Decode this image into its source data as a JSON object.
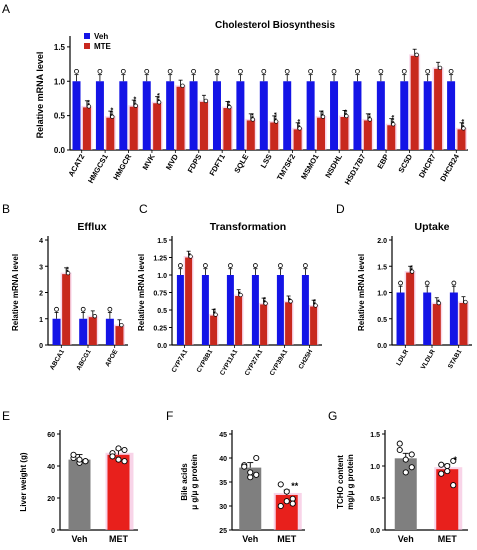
{
  "colors": {
    "veh_blue": "#1414e6",
    "mte_red": "#c8281e",
    "veh_gray": "#7f7f7f",
    "met_red": "#e8201c",
    "halo": "#f4b8d8",
    "axis": "#000000"
  },
  "chart_data": [
    {
      "panel": "A",
      "type": "bar",
      "title": "Cholesterol Biosynthesis",
      "ylabel": "Relative mRNA level",
      "ylim": [
        0,
        1.6
      ],
      "yticks": [
        0.0,
        0.5,
        1.0,
        1.5
      ],
      "ytick_labels": [
        "0.0",
        "0.5",
        "1.0",
        "1.5"
      ],
      "categories": [
        "ACAT2",
        "HMGCS1",
        "HMGCR",
        "MVK",
        "MVD",
        "FDPS",
        "FDFT1",
        "SQLE",
        "LSS",
        "TM7SF2",
        "MSMO1",
        "NSDHL",
        "HSD17B7",
        "EBP",
        "SC5D",
        "DHCR7",
        "DHCR24"
      ],
      "series": [
        {
          "name": "Veh",
          "color": "#1414e6",
          "values": [
            1.0,
            1.0,
            1.0,
            1.0,
            1.0,
            1.0,
            1.0,
            1.0,
            1.0,
            1.0,
            1.0,
            1.0,
            1.0,
            1.0,
            1.0,
            1.0,
            1.0
          ]
        },
        {
          "name": "MTE",
          "color": "#c8281e",
          "values": [
            0.62,
            0.47,
            0.63,
            0.68,
            0.92,
            0.7,
            0.61,
            0.43,
            0.4,
            0.3,
            0.47,
            0.48,
            0.43,
            0.36,
            1.37,
            1.18,
            0.3
          ]
        }
      ],
      "significance": [
        "**",
        "***",
        "***",
        "***",
        "",
        "",
        "**",
        "**",
        "***",
        "***",
        "**",
        "**",
        "**",
        "***",
        "",
        "",
        "***"
      ],
      "legend": "top-left"
    },
    {
      "panel": "B",
      "type": "bar",
      "title": "Efflux",
      "ylabel": "Relative mRNA level",
      "ylim": [
        0,
        4
      ],
      "yticks": [
        0,
        1,
        2,
        3,
        4
      ],
      "ytick_labels": [
        "0",
        "1",
        "2",
        "3",
        "4"
      ],
      "categories": [
        "ABCA1",
        "ABCG1",
        "APOE"
      ],
      "series": [
        {
          "color": "#1414e6",
          "values": [
            1.0,
            1.0,
            1.0
          ]
        },
        {
          "color": "#c8281e",
          "values": [
            2.7,
            1.06,
            0.72
          ]
        }
      ],
      "significance": [
        "**",
        "",
        ""
      ]
    },
    {
      "panel": "C",
      "type": "bar",
      "title": "Transformation",
      "ylabel": "Relative mRNA level",
      "ylim": [
        0,
        1.5
      ],
      "yticks": [
        0.0,
        0.25,
        0.5,
        0.75,
        1.0,
        1.25,
        1.5
      ],
      "ytick_labels": [
        "0.0",
        "0.25",
        "0.5",
        "0.75",
        "1.0",
        "1.25",
        "1.5"
      ],
      "categories": [
        "CYP7A1",
        "CYP8B1",
        "CYP11A1",
        "CYP27A1",
        "CYP39A1",
        "CH25H"
      ],
      "series": [
        {
          "color": "#1414e6",
          "values": [
            1.0,
            1.0,
            1.0,
            1.0,
            1.0,
            1.0
          ]
        },
        {
          "color": "#c8281e",
          "values": [
            1.25,
            0.42,
            0.7,
            0.58,
            0.61,
            0.55
          ]
        }
      ],
      "significance": [
        "*",
        "**",
        "*",
        "**",
        "*",
        "**"
      ]
    },
    {
      "panel": "D",
      "type": "bar",
      "title": "Uptake",
      "ylabel": "Relative mRNA level",
      "ylim": [
        0,
        2
      ],
      "yticks": [
        0.0,
        0.5,
        1.0,
        1.5,
        2.0
      ],
      "ytick_labels": [
        "0.0",
        "0.5",
        "1.0",
        "1.5",
        "2.0"
      ],
      "categories": [
        "LDLR",
        "VLDLR",
        "STAB1"
      ],
      "series": [
        {
          "color": "#1414e6",
          "values": [
            1.0,
            1.0,
            1.0
          ]
        },
        {
          "color": "#c8281e",
          "values": [
            1.38,
            0.78,
            0.8
          ]
        }
      ],
      "significance": [
        "**",
        "*",
        ""
      ]
    },
    {
      "panel": "E",
      "type": "bar",
      "ylabel": "Liver weight (g)",
      "ylim": [
        0,
        60
      ],
      "yticks": [
        0,
        20,
        40,
        60
      ],
      "ytick_labels": [
        "0",
        "20",
        "40",
        "60"
      ],
      "categories": [
        "Veh",
        "MET"
      ],
      "values": [
        44,
        47
      ],
      "colors": [
        "#7f7f7f",
        "#e8201c"
      ],
      "points": [
        [
          45,
          42,
          43,
          47,
          44,
          43
        ],
        [
          48,
          44,
          50,
          46,
          51,
          43
        ]
      ],
      "significance": [
        "",
        ""
      ]
    },
    {
      "panel": "F",
      "type": "bar",
      "ylabel": "Bile acids\nμ g/μ g protein",
      "ylim": [
        25,
        45
      ],
      "yticks": [
        25,
        30,
        35,
        40,
        45
      ],
      "ytick_labels": [
        "25",
        "30",
        "35",
        "40",
        "45"
      ],
      "categories": [
        "Veh",
        "MET"
      ],
      "values": [
        38.0,
        32.3
      ],
      "colors": [
        "#7f7f7f",
        "#e8201c"
      ],
      "points": [
        [
          38.5,
          36.0,
          40.0,
          38.2,
          37.0,
          36.5
        ],
        [
          34.5,
          31.0,
          31.5,
          30.0,
          33.0,
          30.5
        ]
      ],
      "significance": [
        "",
        "**"
      ]
    },
    {
      "panel": "G",
      "type": "bar",
      "ylabel": "TCHO content\nmg/μ g protein",
      "ylim": [
        0,
        1.5
      ],
      "yticks": [
        0.0,
        0.5,
        1.0,
        1.5
      ],
      "ytick_labels": [
        "0.0",
        "0.5",
        "1.0",
        "1.5"
      ],
      "categories": [
        "Veh",
        "MET"
      ],
      "values": [
        1.12,
        0.95
      ],
      "colors": [
        "#7f7f7f",
        "#e8201c"
      ],
      "points": [
        [
          1.35,
          1.1,
          0.98,
          1.25,
          0.9,
          1.18
        ],
        [
          1.02,
          0.92,
          0.7,
          0.88,
          1.0,
          1.08
        ]
      ],
      "significance": [
        "",
        "*"
      ]
    }
  ],
  "panels": {
    "a_label": "A",
    "b_label": "B",
    "c_label": "C",
    "d_label": "D",
    "e_label": "E",
    "f_label": "F",
    "g_label": "G"
  }
}
